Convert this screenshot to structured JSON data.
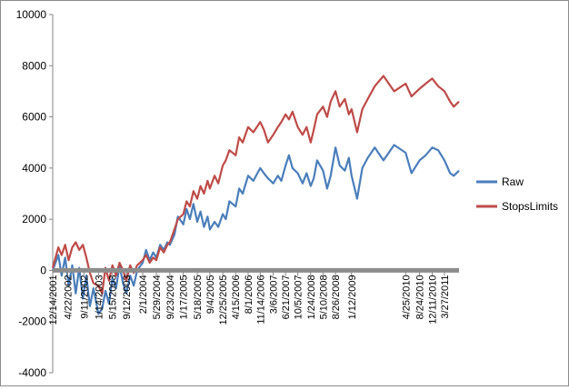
{
  "chart_data": {
    "type": "line",
    "title": "",
    "xlabel": "",
    "ylabel": "",
    "ylim": [
      -4000,
      10000
    ],
    "yticks": [
      -4000,
      -2000,
      0,
      2000,
      4000,
      6000,
      8000,
      10000
    ],
    "ytick_labels": [
      "-4000",
      "-2000",
      "0",
      "2000",
      "4000",
      "6000",
      "8000",
      "10000"
    ],
    "grid": false,
    "legend_position": "right",
    "x_start": "12/14/2001",
    "x_end": "7/31/2011",
    "xtick_labels": [
      "12/14/2001",
      "4/22/2002",
      "9/11/2002",
      "1/14/2003",
      "5/15/2003",
      "9/12/2003",
      "2/1/2004",
      "5/29/2004",
      "9/23/2004",
      "1/17/2005",
      "5/18/2005",
      "9/4/2005",
      "12/25/2005",
      "4/15/2006",
      "8/1/2006",
      "11/14/2006",
      "3/6/2007",
      "6/21/2007",
      "10/5/2007",
      "1/24/2008",
      "5/10/2008",
      "8/26/2008",
      "1/12/2009",
      "4/25/2010",
      "8/24/2010",
      "12/11/2010",
      "3/27/2011"
    ],
    "zero_line_color": "#8c8c8c",
    "series": [
      {
        "name": "Raw",
        "color": "#4a7ebb",
        "points": [
          [
            "12/14/2001",
            0
          ],
          [
            "2/1/2002",
            600
          ],
          [
            "3/1/2002",
            -200
          ],
          [
            "4/1/2002",
            500
          ],
          [
            "5/1/2002",
            -600
          ],
          [
            "6/1/2002",
            200
          ],
          [
            "7/1/2002",
            -900
          ],
          [
            "8/1/2002",
            100
          ],
          [
            "9/1/2002",
            -1100
          ],
          [
            "10/1/2002",
            -200
          ],
          [
            "11/1/2002",
            -1400
          ],
          [
            "12/1/2002",
            -700
          ],
          [
            "1/14/2003",
            -1700
          ],
          [
            "2/15/2003",
            -1500
          ],
          [
            "3/15/2003",
            -800
          ],
          [
            "4/15/2003",
            -1300
          ],
          [
            "5/15/2003",
            -300
          ],
          [
            "6/15/2003",
            -700
          ],
          [
            "7/15/2003",
            200
          ],
          [
            "8/15/2003",
            -500
          ],
          [
            "9/12/2003",
            -900
          ],
          [
            "10/15/2003",
            -200
          ],
          [
            "11/15/2003",
            -600
          ],
          [
            "12/15/2003",
            0
          ],
          [
            "2/1/2004",
            300
          ],
          [
            "3/1/2004",
            800
          ],
          [
            "4/1/2004",
            400
          ],
          [
            "5/1/2004",
            700
          ],
          [
            "5/29/2004",
            500
          ],
          [
            "7/1/2004",
            1000
          ],
          [
            "8/1/2004",
            800
          ],
          [
            "9/1/2004",
            1100
          ],
          [
            "9/23/2004",
            1000
          ],
          [
            "11/1/2004",
            1400
          ],
          [
            "12/1/2004",
            2100
          ],
          [
            "1/17/2005",
            1800
          ],
          [
            "2/15/2005",
            2400
          ],
          [
            "3/15/2005",
            2000
          ],
          [
            "4/15/2005",
            2600
          ],
          [
            "5/18/2005",
            1900
          ],
          [
            "6/15/2005",
            2300
          ],
          [
            "7/15/2005",
            1700
          ],
          [
            "8/15/2005",
            2100
          ],
          [
            "9/4/2005",
            1600
          ],
          [
            "10/15/2005",
            1900
          ],
          [
            "11/15/2005",
            1700
          ],
          [
            "12/25/2005",
            2200
          ],
          [
            "1/20/2006",
            2000
          ],
          [
            "2/20/2006",
            2700
          ],
          [
            "4/15/2006",
            2500
          ],
          [
            "5/15/2006",
            3200
          ],
          [
            "6/15/2006",
            3000
          ],
          [
            "8/1/2006",
            3700
          ],
          [
            "9/15/2006",
            3500
          ],
          [
            "11/14/2006",
            4000
          ],
          [
            "12/15/2006",
            3800
          ],
          [
            "1/20/2007",
            3600
          ],
          [
            "3/6/2007",
            3400
          ],
          [
            "4/15/2007",
            3700
          ],
          [
            "5/15/2007",
            3500
          ],
          [
            "6/21/2007",
            4100
          ],
          [
            "7/20/2007",
            4500
          ],
          [
            "8/20/2007",
            4000
          ],
          [
            "10/5/2007",
            3800
          ],
          [
            "11/15/2007",
            3400
          ],
          [
            "12/20/2007",
            3800
          ],
          [
            "1/24/2008",
            3300
          ],
          [
            "2/20/2008",
            3600
          ],
          [
            "3/20/2008",
            4300
          ],
          [
            "5/10/2008",
            3900
          ],
          [
            "6/15/2008",
            3200
          ],
          [
            "7/15/2008",
            3700
          ],
          [
            "8/26/2008",
            4800
          ],
          [
            "10/1/2008",
            4100
          ],
          [
            "11/15/2008",
            3900
          ],
          [
            "12/20/2008",
            4400
          ],
          [
            "1/12/2009",
            3700
          ],
          [
            "3/1/2009",
            2800
          ],
          [
            "4/15/2009",
            4000
          ],
          [
            "6/1/2009",
            4400
          ],
          [
            "8/1/2009",
            4800
          ],
          [
            "10/15/2009",
            4300
          ],
          [
            "1/15/2010",
            4900
          ],
          [
            "4/25/2010",
            4600
          ],
          [
            "6/15/2010",
            3800
          ],
          [
            "8/24/2010",
            4300
          ],
          [
            "10/15/2010",
            4500
          ],
          [
            "12/11/2010",
            4800
          ],
          [
            "2/1/2011",
            4700
          ],
          [
            "3/27/2011",
            4300
          ],
          [
            "5/15/2011",
            3800
          ],
          [
            "6/15/2011",
            3700
          ],
          [
            "7/31/2011",
            3900
          ]
        ]
      },
      {
        "name": "StopsLimits",
        "color": "#be4b48",
        "points": [
          [
            "12/14/2001",
            100
          ],
          [
            "2/1/2002",
            900
          ],
          [
            "3/1/2002",
            600
          ],
          [
            "4/1/2002",
            1000
          ],
          [
            "5/1/2002",
            400
          ],
          [
            "6/1/2002",
            900
          ],
          [
            "7/1/2002",
            1100
          ],
          [
            "8/1/2002",
            800
          ],
          [
            "9/1/2002",
            1000
          ],
          [
            "10/1/2002",
            500
          ],
          [
            "11/1/2002",
            -100
          ],
          [
            "12/1/2002",
            -500
          ],
          [
            "1/14/2003",
            -600
          ],
          [
            "2/15/2003",
            -900
          ],
          [
            "3/15/2003",
            100
          ],
          [
            "4/15/2003",
            -400
          ],
          [
            "5/15/2003",
            200
          ],
          [
            "6/15/2003",
            -200
          ],
          [
            "7/15/2003",
            300
          ],
          [
            "8/15/2003",
            0
          ],
          [
            "9/12/2003",
            -400
          ],
          [
            "10/15/2003",
            200
          ],
          [
            "11/15/2003",
            -100
          ],
          [
            "12/15/2003",
            200
          ],
          [
            "2/1/2004",
            400
          ],
          [
            "3/1/2004",
            600
          ],
          [
            "4/1/2004",
            300
          ],
          [
            "5/1/2004",
            500
          ],
          [
            "5/29/2004",
            400
          ],
          [
            "7/1/2004",
            900
          ],
          [
            "8/1/2004",
            700
          ],
          [
            "9/1/2004",
            1000
          ],
          [
            "9/23/2004",
            1100
          ],
          [
            "11/1/2004",
            1600
          ],
          [
            "12/1/2004",
            2000
          ],
          [
            "1/17/2005",
            2200
          ],
          [
            "2/15/2005",
            2700
          ],
          [
            "3/15/2005",
            2500
          ],
          [
            "4/15/2005",
            3100
          ],
          [
            "5/18/2005",
            2800
          ],
          [
            "6/15/2005",
            3300
          ],
          [
            "7/15/2005",
            3000
          ],
          [
            "8/15/2005",
            3500
          ],
          [
            "9/4/2005",
            3200
          ],
          [
            "10/15/2005",
            3700
          ],
          [
            "11/15/2005",
            3400
          ],
          [
            "12/25/2005",
            4100
          ],
          [
            "1/20/2006",
            4300
          ],
          [
            "2/20/2006",
            4700
          ],
          [
            "4/15/2006",
            4500
          ],
          [
            "5/15/2006",
            5200
          ],
          [
            "6/15/2006",
            5000
          ],
          [
            "8/1/2006",
            5600
          ],
          [
            "9/15/2006",
            5400
          ],
          [
            "11/14/2006",
            5800
          ],
          [
            "12/15/2006",
            5500
          ],
          [
            "1/20/2007",
            5000
          ],
          [
            "3/6/2007",
            5300
          ],
          [
            "4/15/2007",
            5600
          ],
          [
            "5/15/2007",
            5800
          ],
          [
            "6/21/2007",
            6100
          ],
          [
            "7/20/2007",
            5900
          ],
          [
            "8/20/2007",
            6200
          ],
          [
            "10/5/2007",
            5600
          ],
          [
            "11/15/2007",
            5300
          ],
          [
            "12/20/2007",
            5600
          ],
          [
            "1/24/2008",
            5000
          ],
          [
            "2/20/2008",
            5500
          ],
          [
            "3/20/2008",
            6100
          ],
          [
            "5/10/2008",
            6400
          ],
          [
            "6/15/2008",
            6000
          ],
          [
            "7/15/2008",
            6600
          ],
          [
            "8/26/2008",
            7000
          ],
          [
            "10/1/2008",
            6400
          ],
          [
            "11/15/2008",
            6700
          ],
          [
            "12/20/2008",
            6100
          ],
          [
            "1/12/2009",
            6300
          ],
          [
            "3/1/2009",
            5400
          ],
          [
            "4/15/2009",
            6300
          ],
          [
            "6/1/2009",
            6700
          ],
          [
            "8/1/2009",
            7200
          ],
          [
            "10/15/2009",
            7600
          ],
          [
            "1/15/2010",
            7000
          ],
          [
            "4/25/2010",
            7300
          ],
          [
            "6/15/2010",
            6800
          ],
          [
            "8/24/2010",
            7100
          ],
          [
            "10/15/2010",
            7300
          ],
          [
            "12/11/2010",
            7500
          ],
          [
            "2/1/2011",
            7200
          ],
          [
            "3/27/2011",
            7000
          ],
          [
            "5/15/2011",
            6600
          ],
          [
            "6/15/2011",
            6400
          ],
          [
            "7/31/2011",
            6600
          ]
        ]
      }
    ]
  }
}
